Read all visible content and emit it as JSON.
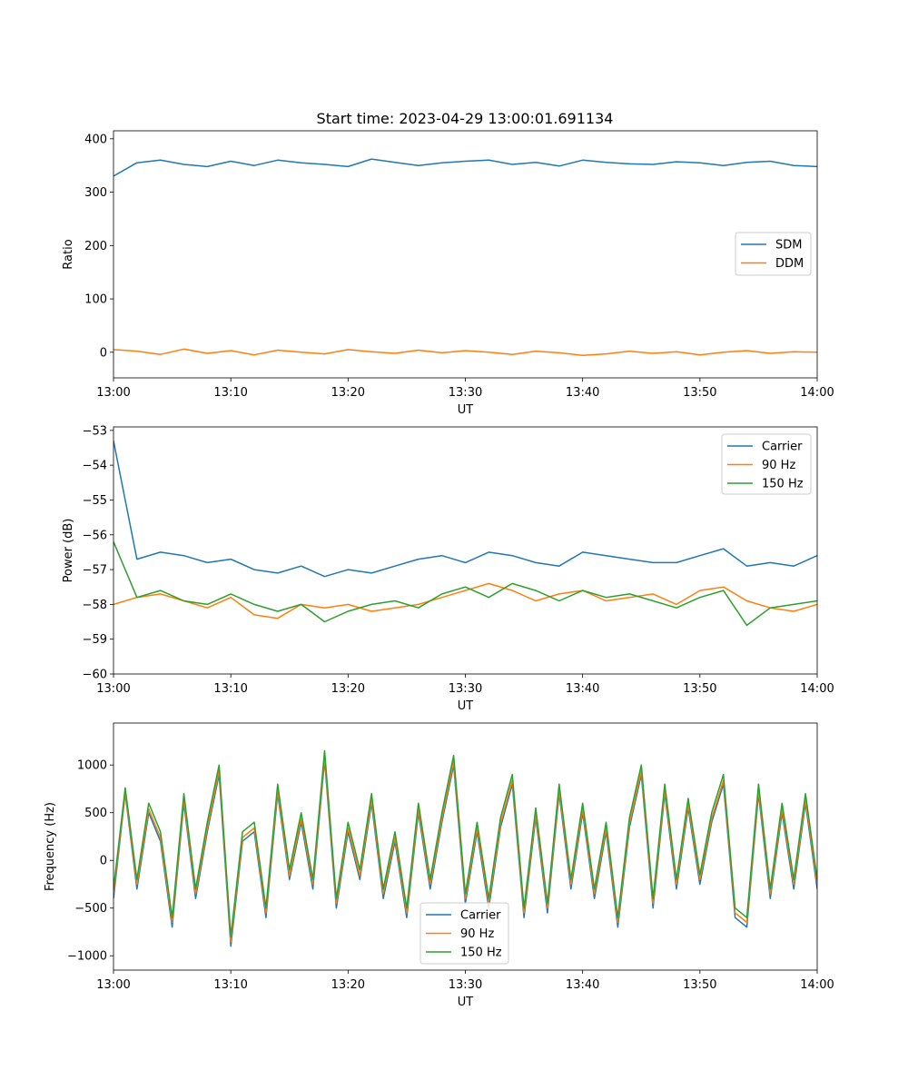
{
  "figure": {
    "title": "Start time: 2023-04-29 13:00:01.691134"
  },
  "chart_data": [
    {
      "type": "line",
      "title": "Start time: 2023-04-29 13:00:01.691134",
      "xlabel": "UT",
      "ylabel": "Ratio",
      "xlim": [
        "13:00",
        "14:00"
      ],
      "ylim": [
        -48,
        415
      ],
      "x_ticks": [
        "13:00",
        "13:10",
        "13:20",
        "13:30",
        "13:40",
        "13:50",
        "14:00"
      ],
      "y_ticks": [
        {
          "value": 400,
          "label": "400"
        },
        {
          "value": 300,
          "label": "300"
        },
        {
          "value": 200,
          "label": "200"
        },
        {
          "value": 100,
          "label": "100"
        },
        {
          "value": 0,
          "label": "0"
        }
      ],
      "legend": "center-right",
      "x_minutes": [
        0,
        2,
        4,
        6,
        8,
        10,
        12,
        14,
        16,
        18,
        20,
        22,
        24,
        26,
        28,
        30,
        32,
        34,
        36,
        38,
        40,
        42,
        44,
        46,
        48,
        50,
        52,
        54,
        56,
        58,
        60
      ],
      "series": [
        {
          "name": "SDM",
          "color": "#1f77b4",
          "values": [
            330,
            355,
            360,
            352,
            348,
            358,
            350,
            360,
            355,
            352,
            348,
            362,
            356,
            350,
            355,
            358,
            360,
            352,
            356,
            349,
            360,
            356,
            353,
            352,
            357,
            355,
            350,
            356,
            358,
            350,
            348
          ]
        },
        {
          "name": "DDM",
          "color": "#ff7f0e",
          "values": [
            5,
            2,
            -4,
            6,
            -2,
            3,
            -5,
            4,
            0,
            -3,
            5,
            1,
            -2,
            4,
            -1,
            3,
            0,
            -4,
            2,
            -1,
            -6,
            -3,
            2,
            -2,
            1,
            -5,
            0,
            3,
            -2,
            1,
            0
          ]
        }
      ]
    },
    {
      "type": "line",
      "xlabel": "UT",
      "ylabel": "Power (dB)",
      "xlim": [
        "13:00",
        "14:00"
      ],
      "ylim": [
        -60,
        -52.9
      ],
      "x_ticks": [
        "13:00",
        "13:10",
        "13:20",
        "13:30",
        "13:40",
        "13:50",
        "14:00"
      ],
      "y_ticks": [
        {
          "value": -53,
          "label": "−53"
        },
        {
          "value": -54,
          "label": "−54"
        },
        {
          "value": -55,
          "label": "−55"
        },
        {
          "value": -56,
          "label": "−56"
        },
        {
          "value": -57,
          "label": "−57"
        },
        {
          "value": -58,
          "label": "−58"
        },
        {
          "value": -59,
          "label": "−59"
        },
        {
          "value": -60,
          "label": "−60"
        }
      ],
      "legend": "top-right",
      "x_minutes": [
        0,
        2,
        4,
        6,
        8,
        10,
        12,
        14,
        16,
        18,
        20,
        22,
        24,
        26,
        28,
        30,
        32,
        34,
        36,
        38,
        40,
        42,
        44,
        46,
        48,
        50,
        52,
        54,
        56,
        58,
        60
      ],
      "series": [
        {
          "name": "Carrier",
          "color": "#1f77b4",
          "values": [
            -53.3,
            -56.7,
            -56.5,
            -56.6,
            -56.8,
            -56.7,
            -57.0,
            -57.1,
            -56.9,
            -57.2,
            -57.0,
            -57.1,
            -56.9,
            -56.7,
            -56.6,
            -56.8,
            -56.5,
            -56.6,
            -56.8,
            -56.9,
            -56.5,
            -56.6,
            -56.7,
            -56.8,
            -56.8,
            -56.6,
            -56.4,
            -56.9,
            -56.8,
            -56.9,
            -56.6
          ]
        },
        {
          "name": "90 Hz",
          "color": "#ff7f0e",
          "values": [
            -58.0,
            -57.8,
            -57.7,
            -57.9,
            -58.1,
            -57.8,
            -58.3,
            -58.4,
            -58.0,
            -58.1,
            -58.0,
            -58.2,
            -58.1,
            -58.0,
            -57.8,
            -57.6,
            -57.4,
            -57.6,
            -57.9,
            -57.7,
            -57.6,
            -57.9,
            -57.8,
            -57.7,
            -58.0,
            -57.6,
            -57.5,
            -57.9,
            -58.1,
            -58.2,
            -58.0
          ]
        },
        {
          "name": "150 Hz",
          "color": "#2ca02c",
          "values": [
            -56.2,
            -57.8,
            -57.6,
            -57.9,
            -58.0,
            -57.7,
            -58.0,
            -58.2,
            -58.0,
            -58.5,
            -58.2,
            -58.0,
            -57.9,
            -58.1,
            -57.7,
            -57.5,
            -57.8,
            -57.4,
            -57.6,
            -57.9,
            -57.6,
            -57.8,
            -57.7,
            -57.9,
            -58.1,
            -57.8,
            -57.6,
            -58.6,
            -58.1,
            -58.0,
            -57.9
          ]
        }
      ]
    },
    {
      "type": "line",
      "xlabel": "UT",
      "ylabel": "Frequency (Hz)",
      "xlim": [
        "13:00",
        "14:00"
      ],
      "ylim": [
        -1150,
        1440
      ],
      "x_ticks": [
        "13:00",
        "13:10",
        "13:20",
        "13:30",
        "13:40",
        "13:50",
        "14:00"
      ],
      "y_ticks": [
        {
          "value": 1000,
          "label": "1000"
        },
        {
          "value": 500,
          "label": "500"
        },
        {
          "value": 0,
          "label": "0"
        },
        {
          "value": -500,
          "label": "−500"
        },
        {
          "value": -1000,
          "label": "−1000"
        }
      ],
      "legend": "lower-center",
      "x_minutes": [
        0,
        1,
        2,
        3,
        4,
        5,
        6,
        7,
        8,
        9,
        10,
        11,
        12,
        13,
        14,
        15,
        16,
        17,
        18,
        19,
        20,
        21,
        22,
        23,
        24,
        25,
        26,
        27,
        28,
        29,
        30,
        31,
        32,
        33,
        34,
        35,
        36,
        37,
        38,
        39,
        40,
        41,
        42,
        43,
        44,
        45,
        46,
        47,
        48,
        49,
        50,
        51,
        52,
        53,
        54,
        55,
        56,
        57,
        58,
        59,
        60
      ],
      "series": [
        {
          "name": "Carrier",
          "color": "#1f77b4",
          "values": [
            -400,
            700,
            -300,
            500,
            200,
            -700,
            600,
            -400,
            300,
            900,
            -900,
            200,
            300,
            -600,
            700,
            -200,
            400,
            -300,
            1050,
            -500,
            300,
            -200,
            600,
            -400,
            200,
            -600,
            500,
            -300,
            400,
            1000,
            -450,
            300,
            -500,
            350,
            800,
            -600,
            450,
            -550,
            700,
            -300,
            500,
            -400,
            300,
            -700,
            350,
            900,
            -500,
            700,
            -300,
            550,
            -250,
            400,
            800,
            -600,
            -700,
            700,
            -400,
            500,
            -300,
            600,
            -300
          ]
        },
        {
          "name": "90 Hz",
          "color": "#ff7f0e",
          "values": [
            -350,
            720,
            -250,
            540,
            240,
            -650,
            640,
            -350,
            340,
            940,
            -850,
            240,
            340,
            -550,
            740,
            -160,
            440,
            -250,
            1090,
            -450,
            340,
            -160,
            640,
            -350,
            240,
            -550,
            540,
            -250,
            440,
            1040,
            -400,
            340,
            -450,
            390,
            840,
            -550,
            490,
            -500,
            740,
            -250,
            540,
            -350,
            340,
            -650,
            390,
            940,
            -450,
            740,
            -250,
            590,
            -200,
            440,
            840,
            -550,
            -650,
            740,
            -350,
            540,
            -250,
            640,
            -250
          ]
        },
        {
          "name": "150 Hz",
          "color": "#2ca02c",
          "values": [
            -300,
            760,
            -200,
            600,
            300,
            -600,
            700,
            -300,
            400,
            1000,
            -800,
            300,
            400,
            -500,
            800,
            -100,
            500,
            -200,
            1150,
            -400,
            400,
            -100,
            700,
            -300,
            300,
            -500,
            600,
            -200,
            500,
            1100,
            -350,
            400,
            -400,
            450,
            900,
            -500,
            550,
            -450,
            800,
            -200,
            600,
            -300,
            400,
            -600,
            450,
            1000,
            -400,
            800,
            -200,
            650,
            -150,
            500,
            900,
            -500,
            -600,
            800,
            -300,
            600,
            -200,
            700,
            -200
          ]
        }
      ]
    }
  ]
}
